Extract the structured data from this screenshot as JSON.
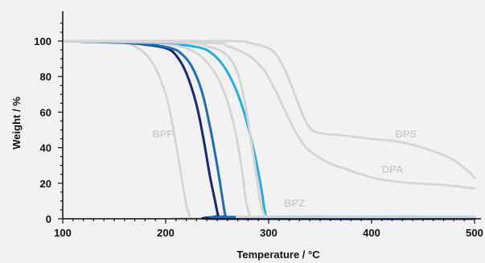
{
  "chart_data": {
    "type": "line",
    "xlabel": "Temperature / °C",
    "ylabel": "Weight / %",
    "xlim": [
      100,
      500
    ],
    "ylim": [
      0,
      100
    ],
    "xticks": [
      100,
      200,
      300,
      400,
      500
    ],
    "yticks": [
      0,
      20,
      40,
      60,
      80,
      100
    ],
    "grid": false,
    "series": [
      {
        "name": "BPF",
        "color": "#d6d6d6",
        "label_x": 187,
        "label_y": 48,
        "points": [
          [
            100,
            100
          ],
          [
            140,
            100
          ],
          [
            160,
            99
          ],
          [
            170,
            97
          ],
          [
            180,
            93
          ],
          [
            190,
            85
          ],
          [
            200,
            70
          ],
          [
            205,
            58
          ],
          [
            210,
            42
          ],
          [
            215,
            25
          ],
          [
            220,
            8
          ],
          [
            224,
            1
          ],
          [
            228,
            0
          ],
          [
            500,
            0
          ]
        ]
      },
      {
        "name": "",
        "color": "#1a2a6c",
        "points": [
          [
            100,
            100
          ],
          [
            160,
            99
          ],
          [
            180,
            98
          ],
          [
            200,
            96
          ],
          [
            210,
            92
          ],
          [
            220,
            82
          ],
          [
            230,
            64
          ],
          [
            237,
            44
          ],
          [
            243,
            24
          ],
          [
            248,
            10
          ],
          [
            251,
            2
          ],
          [
            255,
            0
          ],
          [
            500,
            0
          ]
        ]
      },
      {
        "name": "",
        "color": "#1f6eb5",
        "points": [
          [
            100,
            100
          ],
          [
            165,
            99
          ],
          [
            185,
            98
          ],
          [
            205,
            96
          ],
          [
            215,
            93
          ],
          [
            225,
            86
          ],
          [
            235,
            72
          ],
          [
            243,
            52
          ],
          [
            250,
            30
          ],
          [
            255,
            12
          ],
          [
            258,
            2
          ],
          [
            262,
            1
          ],
          [
            500,
            1
          ]
        ]
      },
      {
        "name": "",
        "color": "#d6d6d6",
        "points": [
          [
            100,
            100
          ],
          [
            190,
            99
          ],
          [
            205,
            98
          ],
          [
            220,
            96
          ],
          [
            235,
            91
          ],
          [
            250,
            80
          ],
          [
            260,
            66
          ],
          [
            268,
            48
          ],
          [
            274,
            28
          ],
          [
            278,
            10
          ],
          [
            282,
            2
          ],
          [
            286,
            1
          ],
          [
            500,
            1
          ]
        ]
      },
      {
        "name": "",
        "color": "#29abe2",
        "points": [
          [
            100,
            100
          ],
          [
            200,
            99
          ],
          [
            215,
            98
          ],
          [
            235,
            96
          ],
          [
            245,
            93
          ],
          [
            255,
            87
          ],
          [
            265,
            77
          ],
          [
            275,
            62
          ],
          [
            285,
            40
          ],
          [
            292,
            20
          ],
          [
            296,
            5
          ],
          [
            298,
            1
          ],
          [
            305,
            1
          ],
          [
            500,
            1
          ]
        ]
      },
      {
        "name": "BPZ",
        "color": "#d6d6d6",
        "label_x": 315,
        "label_y": 9,
        "points": [
          [
            100,
            100
          ],
          [
            220,
            99
          ],
          [
            240,
            97
          ],
          [
            255,
            94
          ],
          [
            265,
            88
          ],
          [
            272,
            78
          ],
          [
            278,
            62
          ],
          [
            283,
            44
          ],
          [
            288,
            25
          ],
          [
            292,
            9
          ],
          [
            296,
            2
          ],
          [
            300,
            1
          ],
          [
            500,
            1
          ]
        ]
      },
      {
        "name": "DPA",
        "color": "#d6d6d6",
        "label_x": 410,
        "label_y": 28,
        "points": [
          [
            100,
            100
          ],
          [
            240,
            99
          ],
          [
            260,
            97
          ],
          [
            280,
            92
          ],
          [
            295,
            84
          ],
          [
            305,
            74
          ],
          [
            315,
            62
          ],
          [
            325,
            50
          ],
          [
            335,
            41
          ],
          [
            345,
            36
          ],
          [
            360,
            31
          ],
          [
            375,
            28
          ],
          [
            390,
            25
          ],
          [
            410,
            22
          ],
          [
            440,
            20
          ],
          [
            470,
            19
          ],
          [
            500,
            17
          ]
        ]
      },
      {
        "name": "BPS",
        "color": "#d6d6d6",
        "label_x": 423,
        "label_y": 48,
        "points": [
          [
            100,
            100
          ],
          [
            260,
            100
          ],
          [
            280,
            99
          ],
          [
            295,
            97
          ],
          [
            305,
            94
          ],
          [
            312,
            88
          ],
          [
            320,
            78
          ],
          [
            328,
            66
          ],
          [
            335,
            56
          ],
          [
            342,
            50
          ],
          [
            352,
            48
          ],
          [
            370,
            47
          ],
          [
            400,
            45
          ],
          [
            430,
            43
          ],
          [
            460,
            38
          ],
          [
            480,
            33
          ],
          [
            495,
            26
          ],
          [
            500,
            23
          ]
        ]
      }
    ]
  }
}
